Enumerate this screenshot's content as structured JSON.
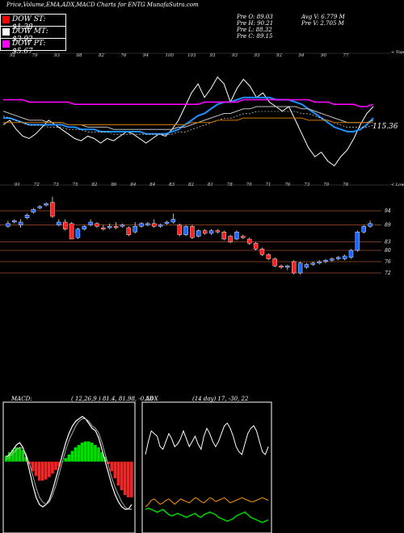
{
  "header": {
    "title": "Price,Volume,EMA,ADX,MACD Charts for ENTG MunafaSutra.com",
    "stats": [
      {
        "label": "Pre  O:",
        "value": "89.03"
      },
      {
        "label": "Pre  H:",
        "value": "90.21"
      },
      {
        "label": "Pre  L:",
        "value": "88.32"
      },
      {
        "label": "Pre  C:",
        "value": "89.15"
      }
    ],
    "avg_volume": "Avg V: 6.779 M",
    "pre_volume": "Pre  V: 2.705 M"
  },
  "dow_boxes": [
    {
      "label": "DOW ST: $1.38",
      "color": "#ff0000"
    },
    {
      "label": "DOW MT: $3.92",
      "color": "#ffffff"
    },
    {
      "label": "DOW PT: $5.67",
      "color": "#ff00ff"
    }
  ],
  "ema_panel": {
    "top_label": "< Tops",
    "bottom_label": "< Lows",
    "current_value": "115.36",
    "top_tick_labels": [
      "92",
      "79",
      "93",
      "88",
      "82",
      "76",
      "94",
      "100",
      "103",
      "93",
      "93",
      "93",
      "92",
      "94",
      "90",
      "77"
    ],
    "bottom_tick_labels": [
      "91",
      "72",
      "73",
      "75",
      "82",
      "86",
      "84",
      "84",
      "83",
      "82",
      "81",
      "78",
      "70",
      "71",
      "76",
      "73",
      "70",
      "78"
    ]
  },
  "chart_data": [
    {
      "type": "line",
      "panel": "price-ema",
      "series": [
        {
          "color": "#ffffff",
          "values": [
            110,
            112,
            108,
            105,
            104,
            106,
            109,
            112,
            110,
            108,
            106,
            104,
            103,
            105,
            104,
            102,
            104,
            103,
            105,
            107,
            106,
            104,
            102,
            104,
            106,
            105,
            108,
            112,
            118,
            124,
            128,
            122,
            126,
            131,
            128,
            120,
            126,
            130,
            127,
            122,
            124,
            120,
            118,
            116,
            118,
            112,
            106,
            100,
            96,
            98,
            94,
            92,
            96,
            99,
            104,
            110,
            115,
            118
          ]
        },
        {
          "color": "#1e90ff",
          "values": [
            113,
            113,
            112,
            111,
            110,
            110,
            110,
            110,
            110,
            110,
            109,
            109,
            108,
            108,
            108,
            107,
            107,
            107,
            107,
            107,
            107,
            107,
            106,
            106,
            106,
            106,
            107,
            108,
            110,
            112,
            114,
            115,
            117,
            119,
            120,
            120,
            121,
            122,
            122,
            122,
            122,
            122,
            121,
            121,
            121,
            120,
            119,
            117,
            115,
            113,
            111,
            109,
            108,
            107,
            107,
            108,
            110,
            113
          ]
        },
        {
          "color": "#c0c0c0",
          "values": [
            116,
            115,
            114,
            113,
            112,
            112,
            112,
            111,
            111,
            111,
            110,
            110,
            110,
            109,
            109,
            109,
            109,
            108,
            108,
            108,
            108,
            108,
            108,
            108,
            108,
            108,
            108,
            109,
            109,
            110,
            111,
            112,
            113,
            114,
            115,
            115,
            116,
            117,
            117,
            118,
            118,
            118,
            118,
            118,
            118,
            118,
            117,
            117,
            116,
            115,
            114,
            113,
            112,
            111,
            111,
            111,
            111,
            112
          ]
        },
        {
          "color": "#cc7700",
          "values": [
            111,
            111,
            111,
            111,
            111,
            111,
            111,
            111,
            111,
            111,
            110,
            110,
            110,
            110,
            110,
            110,
            110,
            110,
            110,
            110,
            110,
            110,
            110,
            110,
            110,
            110,
            110,
            110,
            110,
            111,
            111,
            111,
            111,
            112,
            112,
            112,
            112,
            113,
            113,
            113,
            113,
            113,
            113,
            113,
            113,
            113,
            113,
            112,
            112,
            112,
            112,
            111,
            111,
            111,
            111,
            111,
            111,
            111
          ]
        },
        {
          "color": "#ff00ff",
          "values": [
            121,
            121,
            121,
            121,
            120,
            120,
            120,
            120,
            120,
            120,
            120,
            119,
            119,
            119,
            119,
            119,
            119,
            119,
            119,
            119,
            119,
            119,
            119,
            119,
            119,
            119,
            119,
            119,
            119,
            119,
            119,
            120,
            120,
            120,
            120,
            120,
            120,
            121,
            121,
            121,
            121,
            121,
            121,
            121,
            121,
            121,
            121,
            121,
            120,
            120,
            120,
            119,
            119,
            119,
            119,
            118,
            118,
            119
          ]
        }
      ],
      "ylim": [
        85,
        140
      ]
    },
    {
      "type": "candlestick",
      "panel": "price",
      "y_tick_labels": [
        "94",
        "89",
        "83",
        "80",
        "76",
        "72"
      ],
      "levels": [
        94,
        89,
        83,
        80,
        76,
        72
      ],
      "candles": [
        {
          "o": 88.5,
          "c": 89.5,
          "h": 90.5,
          "l": 88
        },
        {
          "o": 90,
          "c": 90.5,
          "h": 91,
          "l": 89.5
        },
        {
          "o": 89,
          "c": 90,
          "h": 91,
          "l": 88
        },
        {
          "o": 91.5,
          "c": 92.5,
          "h": 93,
          "l": 91
        },
        {
          "o": 93.5,
          "c": 94.5,
          "h": 95,
          "l": 93
        },
        {
          "o": 95,
          "c": 95.5,
          "h": 96,
          "l": 94.5
        },
        {
          "o": 96,
          "c": 96.5,
          "h": 97,
          "l": 95.5
        },
        {
          "o": 97,
          "c": 92,
          "h": 99,
          "l": 91.5
        },
        {
          "o": 89,
          "c": 90,
          "h": 91,
          "l": 88.5
        },
        {
          "o": 90,
          "c": 87.5,
          "h": 91,
          "l": 87
        },
        {
          "o": 89.5,
          "c": 84,
          "h": 90,
          "l": 84
        },
        {
          "o": 84.5,
          "c": 87.5,
          "h": 88,
          "l": 84
        },
        {
          "o": 87.5,
          "c": 88.5,
          "h": 89,
          "l": 87
        },
        {
          "o": 89,
          "c": 90,
          "h": 91,
          "l": 88.5
        },
        {
          "o": 89.5,
          "c": 88.5,
          "h": 90,
          "l": 88
        },
        {
          "o": 88,
          "c": 87.5,
          "h": 89,
          "l": 87
        },
        {
          "o": 88,
          "c": 88.5,
          "h": 89.5,
          "l": 87.5
        },
        {
          "o": 88.5,
          "c": 88,
          "h": 90,
          "l": 87.5
        },
        {
          "o": 88.5,
          "c": 89,
          "h": 89.5,
          "l": 88
        },
        {
          "o": 88,
          "c": 85.5,
          "h": 88.5,
          "l": 85
        },
        {
          "o": 86.5,
          "c": 88.5,
          "h": 90,
          "l": 86
        },
        {
          "o": 88.5,
          "c": 89.5,
          "h": 90,
          "l": 88
        },
        {
          "o": 89,
          "c": 89.5,
          "h": 90,
          "l": 88.5
        },
        {
          "o": 89.5,
          "c": 88.5,
          "h": 91,
          "l": 88
        },
        {
          "o": 88.5,
          "c": 89,
          "h": 89.5,
          "l": 88
        },
        {
          "o": 89.5,
          "c": 90,
          "h": 90.5,
          "l": 89
        },
        {
          "o": 90,
          "c": 91,
          "h": 93,
          "l": 89.5
        },
        {
          "o": 89,
          "c": 85.5,
          "h": 89.5,
          "l": 85
        },
        {
          "o": 85.5,
          "c": 88.5,
          "h": 89,
          "l": 85
        },
        {
          "o": 88.5,
          "c": 84.5,
          "h": 89,
          "l": 84
        },
        {
          "o": 85,
          "c": 87,
          "h": 87.5,
          "l": 84.5
        },
        {
          "o": 87,
          "c": 86,
          "h": 87.5,
          "l": 85.5
        },
        {
          "o": 86,
          "c": 87,
          "h": 87.5,
          "l": 85.5
        },
        {
          "o": 87,
          "c": 86.5,
          "h": 87.5,
          "l": 86
        },
        {
          "o": 86.5,
          "c": 84,
          "h": 87,
          "l": 83.5
        },
        {
          "o": 85,
          "c": 83,
          "h": 85.5,
          "l": 82.5
        },
        {
          "o": 84,
          "c": 86.5,
          "h": 87,
          "l": 83.5
        },
        {
          "o": 85,
          "c": 84.5,
          "h": 85.5,
          "l": 84
        },
        {
          "o": 84,
          "c": 82.5,
          "h": 84.5,
          "l": 82
        },
        {
          "o": 82.5,
          "c": 80.5,
          "h": 83,
          "l": 80
        },
        {
          "o": 80.5,
          "c": 78.5,
          "h": 81,
          "l": 78
        },
        {
          "o": 78.5,
          "c": 77,
          "h": 79,
          "l": 76.5
        },
        {
          "o": 77,
          "c": 74.5,
          "h": 77.5,
          "l": 74
        },
        {
          "o": 74.5,
          "c": 74,
          "h": 75,
          "l": 73.5
        },
        {
          "o": 74,
          "c": 74.5,
          "h": 75,
          "l": 73
        },
        {
          "o": 76,
          "c": 72,
          "h": 76.5,
          "l": 71.5
        },
        {
          "o": 72,
          "c": 75.5,
          "h": 76,
          "l": 71.5
        },
        {
          "o": 74,
          "c": 75,
          "h": 75.5,
          "l": 73.5
        },
        {
          "o": 75,
          "c": 75.5,
          "h": 76,
          "l": 74.5
        },
        {
          "o": 75.5,
          "c": 76,
          "h": 76.5,
          "l": 75
        },
        {
          "o": 76,
          "c": 76.5,
          "h": 77,
          "l": 75.5
        },
        {
          "o": 76.5,
          "c": 77,
          "h": 77.5,
          "l": 76
        },
        {
          "o": 77,
          "c": 77.5,
          "h": 78,
          "l": 76.5
        },
        {
          "o": 77,
          "c": 78,
          "h": 78.5,
          "l": 76.5
        },
        {
          "o": 77.5,
          "c": 80,
          "h": 80.5,
          "l": 77
        },
        {
          "o": 80,
          "c": 86.5,
          "h": 87,
          "l": 79.5
        },
        {
          "o": 86.5,
          "c": 88.5,
          "h": 89,
          "l": 86
        },
        {
          "o": 88.5,
          "c": 89.5,
          "h": 90.5,
          "l": 88
        }
      ]
    },
    {
      "type": "bar",
      "panel": "macd",
      "title": "MACD:",
      "params": "( 12,26,9 ) 81.4, 81.98, -0.58",
      "histogram": [
        5,
        8,
        10,
        12,
        12,
        10,
        4,
        -2,
        -8,
        -12,
        -16,
        -16,
        -15,
        -13,
        -10,
        -7,
        -4,
        0,
        3,
        6,
        9,
        12,
        14,
        16,
        17,
        17,
        16,
        14,
        12,
        8,
        4,
        -2,
        -8,
        -14,
        -20,
        -24,
        -28,
        -30,
        -30
      ],
      "macd_line": [
        4,
        6,
        10,
        14,
        16,
        12,
        4,
        -8,
        -20,
        -30,
        -36,
        -38,
        -36,
        -32,
        -24,
        -14,
        -4,
        6,
        16,
        24,
        30,
        34,
        36,
        38,
        36,
        32,
        28,
        26,
        20,
        10,
        0,
        -10,
        -20,
        -28,
        -34,
        -38,
        -40,
        -40,
        -36
      ],
      "signal_line": [
        2,
        4,
        7,
        10,
        12,
        11,
        6,
        -2,
        -12,
        -22,
        -30,
        -34,
        -36,
        -34,
        -28,
        -20,
        -10,
        0,
        10,
        18,
        24,
        30,
        34,
        36,
        36,
        34,
        30,
        28,
        24,
        16,
        6,
        -4,
        -14,
        -22,
        -28,
        -34,
        -38,
        -40,
        -40
      ],
      "ylim": [
        -60,
        50
      ]
    },
    {
      "type": "line",
      "panel": "adx",
      "title": "ADX",
      "params": "(14 day) 17, -30, 22",
      "series": [
        {
          "color": "#ffffff",
          "values": [
            20,
            30,
            38,
            36,
            34,
            26,
            24,
            30,
            36,
            32,
            26,
            28,
            32,
            38,
            32,
            26,
            30,
            34,
            28,
            24,
            34,
            40,
            36,
            30,
            26,
            30,
            36,
            42,
            44,
            40,
            34,
            26,
            22,
            20,
            28,
            36,
            40,
            42,
            38,
            30,
            22,
            20,
            26
          ]
        },
        {
          "color": "#ff9900",
          "values": [
            -20,
            -18,
            -15,
            -14,
            -16,
            -18,
            -17,
            -15,
            -14,
            -16,
            -18,
            -16,
            -14,
            -15,
            -16,
            -17,
            -15,
            -13,
            -14,
            -16,
            -17,
            -15,
            -13,
            -14,
            -16,
            -15,
            -14,
            -13,
            -15,
            -17,
            -16,
            -15,
            -14,
            -13,
            -14,
            -15,
            -16,
            -16,
            -15,
            -14,
            -13,
            -14,
            -15
          ]
        },
        {
          "color": "#00cc00",
          "values": [
            -22,
            -21,
            -22,
            -23,
            -24,
            -23,
            -22,
            -24,
            -26,
            -27,
            -26,
            -25,
            -26,
            -27,
            -28,
            -27,
            -26,
            -25,
            -27,
            -28,
            -26,
            -25,
            -24,
            -25,
            -26,
            -28,
            -29,
            -30,
            -31,
            -30,
            -29,
            -27,
            -26,
            -25,
            -24,
            -26,
            -28,
            -29,
            -30,
            -31,
            -32,
            -31,
            -30
          ]
        }
      ],
      "ylim": [
        -40,
        60
      ]
    }
  ]
}
